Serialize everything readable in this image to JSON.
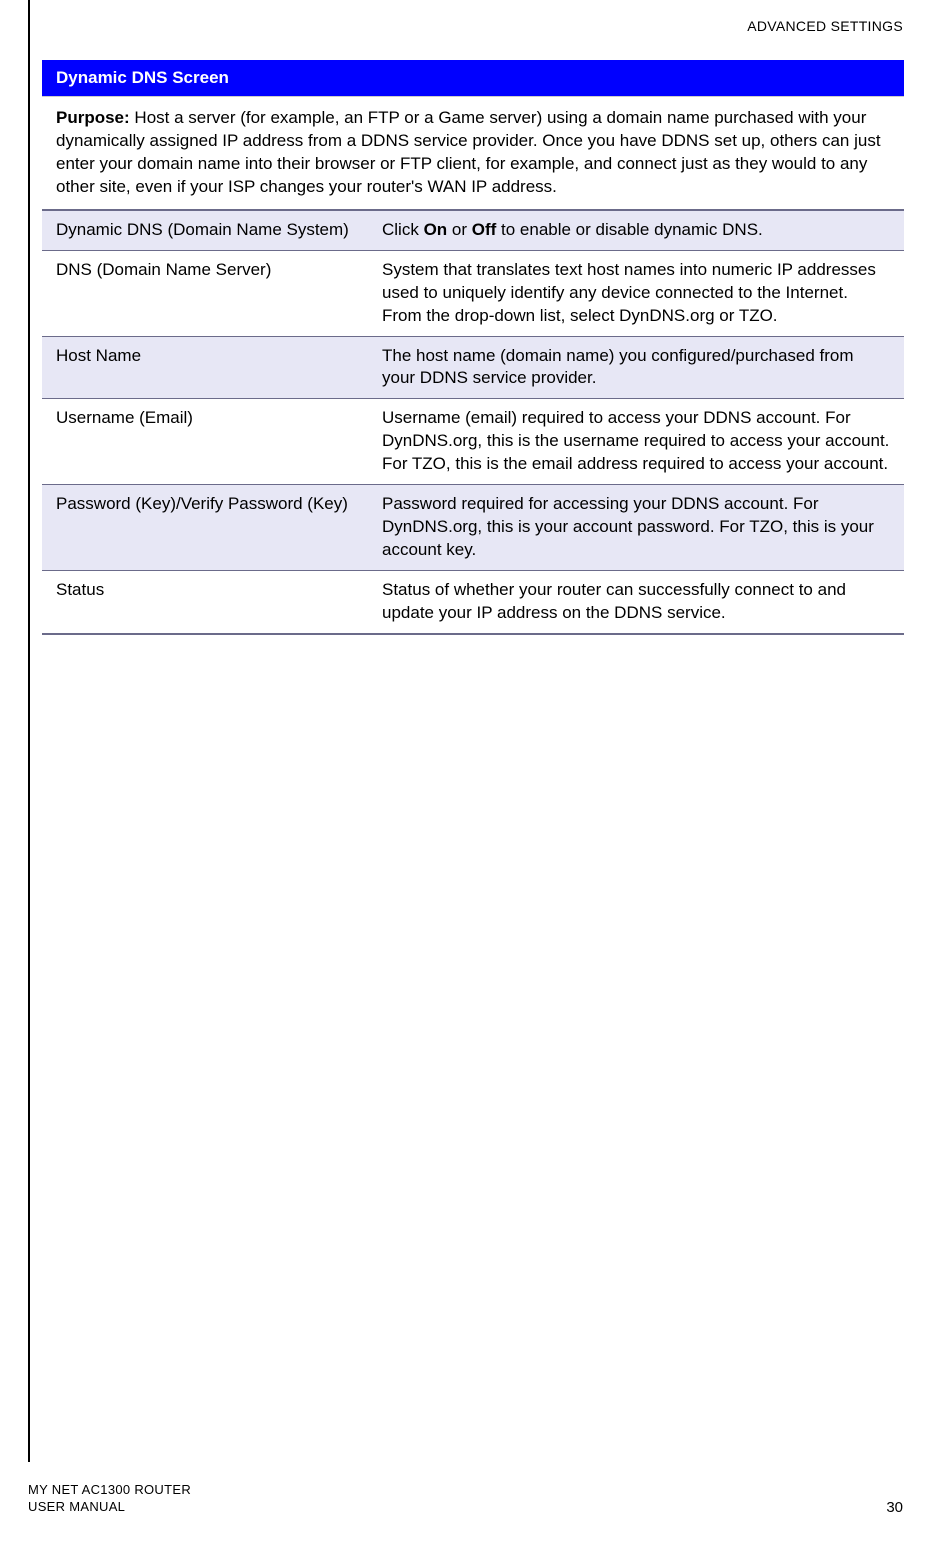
{
  "header": {
    "section_title": "ADVANCED SETTINGS"
  },
  "table": {
    "title": "Dynamic DNS Screen",
    "purpose_label": "Purpose:",
    "purpose_text": " Host a server (for example, an FTP or a Game server) using a domain name purchased with your dynamically assigned IP address from a DDNS service provider. Once you have DDNS set up, others can just enter your domain name into their browser or FTP client, for example, and connect just as they would to any other site, even if your ISP changes your router's WAN IP address.",
    "rows": [
      {
        "label": "Dynamic DNS (Domain Name System)",
        "desc_pre": "Click ",
        "desc_bold1": "On",
        "desc_mid": " or ",
        "desc_bold2": "Off",
        "desc_post": " to enable or disable dynamic DNS.",
        "alt": true
      },
      {
        "label": "DNS (Domain Name Server)",
        "desc": "System that translates text host names into numeric IP addresses used to uniquely identify any device connected to the Internet. From the drop-down list, select DynDNS.org or TZO.",
        "alt": false
      },
      {
        "label": "Host Name",
        "desc": "The host name (domain name) you configured/purchased from your DDNS service provider.",
        "alt": true
      },
      {
        "label": "Username (Email)",
        "desc": "Username (email) required to access your DDNS account. For DynDNS.org, this is the username required to access your account. For TZO, this is the email address required to access your account.",
        "alt": false
      },
      {
        "label": "Password (Key)/Verify Password (Key)",
        "desc": "Password required for accessing your DDNS account. For DynDNS.org, this is your account password. For TZO, this is your account key.",
        "alt": true
      },
      {
        "label": "Status",
        "desc": "Status of whether your router can successfully connect to and update your IP address on the DDNS service.",
        "alt": false
      }
    ]
  },
  "footer": {
    "line1": "MY NET AC1300 ROUTER",
    "line2": "USER MANUAL",
    "page": "30"
  },
  "colors": {
    "title_bg": "#0000ff",
    "title_fg": "#ffffff",
    "alt_row_bg": "#e7e7f5",
    "border": "#6b6b8a"
  }
}
